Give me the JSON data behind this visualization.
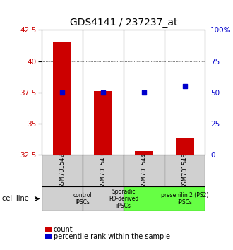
{
  "title": "GDS4141 / 237237_at",
  "samples": [
    "GSM701542",
    "GSM701543",
    "GSM701544",
    "GSM701545"
  ],
  "bar_values": [
    41.5,
    37.6,
    32.8,
    33.8
  ],
  "bar_bottom": 32.5,
  "percentile_values": [
    50,
    50,
    50,
    55
  ],
  "ylim_left": [
    32.5,
    42.5
  ],
  "ylim_right": [
    0,
    100
  ],
  "yticks_left": [
    32.5,
    35.0,
    37.5,
    40.0,
    42.5
  ],
  "yticks_right": [
    0,
    25,
    50,
    75,
    100
  ],
  "ytick_labels_left": [
    "32.5",
    "35",
    "37.5",
    "40",
    "42.5"
  ],
  "ytick_labels_right": [
    "0",
    "25",
    "50",
    "75",
    "100%"
  ],
  "bar_color": "#cc0000",
  "point_color": "#0000cc",
  "cell_line_groups": [
    {
      "label": "control\nIPSCs",
      "start": 0,
      "end": 1,
      "color": "#d0d0d0"
    },
    {
      "label": "Sporadic\nPD-derived\niPSCs",
      "start": 1,
      "end": 2,
      "color": "#d0d0d0"
    },
    {
      "label": "presenilin 2 (PS2)\niPSCs",
      "start": 2,
      "end": 4,
      "color": "#66ff44"
    }
  ],
  "legend_red_label": "count",
  "legend_blue_label": "percentile rank within the sample",
  "cell_line_label": "cell line",
  "left_axis_color": "#cc0000",
  "right_axis_color": "#0000cc",
  "bar_width": 0.45,
  "title_fontsize": 10
}
